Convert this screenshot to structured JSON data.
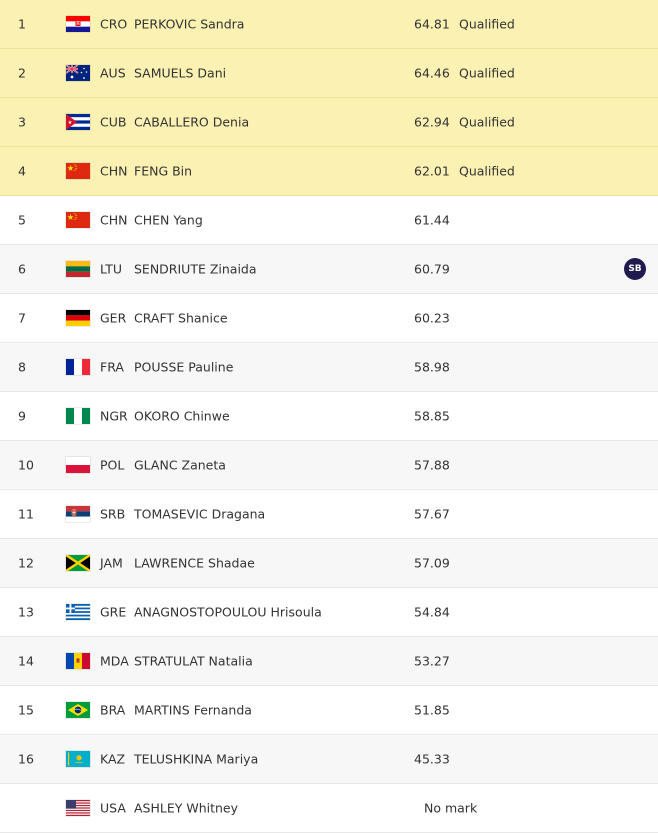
{
  "rows": [
    {
      "rank": "1",
      "code": "CRO",
      "name": "PERKOVIC Sandra",
      "mark": "64.81",
      "status": "Qualified",
      "badge": "",
      "flag": "croatia-flag-icon"
    },
    {
      "rank": "2",
      "code": "AUS",
      "name": "SAMUELS Dani",
      "mark": "64.46",
      "status": "Qualified",
      "badge": "",
      "flag": "australia-flag-icon"
    },
    {
      "rank": "3",
      "code": "CUB",
      "name": "CABALLERO Denia",
      "mark": "62.94",
      "status": "Qualified",
      "badge": "",
      "flag": "cuba-flag-icon"
    },
    {
      "rank": "4",
      "code": "CHN",
      "name": "FENG Bin",
      "mark": "62.01",
      "status": "Qualified",
      "badge": "",
      "flag": "china-flag-icon"
    },
    {
      "rank": "5",
      "code": "CHN",
      "name": "CHEN Yang",
      "mark": "61.44",
      "status": "",
      "badge": "",
      "flag": "china-flag-icon"
    },
    {
      "rank": "6",
      "code": "LTU",
      "name": "SENDRIUTE Zinaida",
      "mark": "60.79",
      "status": "",
      "badge": "SB",
      "flag": "lithuania-flag-icon"
    },
    {
      "rank": "7",
      "code": "GER",
      "name": "CRAFT Shanice",
      "mark": "60.23",
      "status": "",
      "badge": "",
      "flag": "germany-flag-icon"
    },
    {
      "rank": "8",
      "code": "FRA",
      "name": "POUSSE Pauline",
      "mark": "58.98",
      "status": "",
      "badge": "",
      "flag": "france-flag-icon"
    },
    {
      "rank": "9",
      "code": "NGR",
      "name": "OKORO Chinwe",
      "mark": "58.85",
      "status": "",
      "badge": "",
      "flag": "nigeria-flag-icon"
    },
    {
      "rank": "10",
      "code": "POL",
      "name": "GLANC Zaneta",
      "mark": "57.88",
      "status": "",
      "badge": "",
      "flag": "poland-flag-icon"
    },
    {
      "rank": "11",
      "code": "SRB",
      "name": "TOMASEVIC Dragana",
      "mark": "57.67",
      "status": "",
      "badge": "",
      "flag": "serbia-flag-icon"
    },
    {
      "rank": "12",
      "code": "JAM",
      "name": "LAWRENCE Shadae",
      "mark": "57.09",
      "status": "",
      "badge": "",
      "flag": "jamaica-flag-icon"
    },
    {
      "rank": "13",
      "code": "GRE",
      "name": "ANAGNOSTOPOULOU Hrisoula",
      "mark": "54.84",
      "status": "",
      "badge": "",
      "flag": "greece-flag-icon"
    },
    {
      "rank": "14",
      "code": "MDA",
      "name": "STRATULAT Natalia",
      "mark": "53.27",
      "status": "",
      "badge": "",
      "flag": "moldova-flag-icon"
    },
    {
      "rank": "15",
      "code": "BRA",
      "name": "MARTINS Fernanda",
      "mark": "51.85",
      "status": "",
      "badge": "",
      "flag": "brazil-flag-icon"
    },
    {
      "rank": "16",
      "code": "KAZ",
      "name": "TELUSHKINA Mariya",
      "mark": "45.33",
      "status": "",
      "badge": "",
      "flag": "kazakhstan-flag-icon"
    },
    {
      "rank": "",
      "code": "USA",
      "name": "ASHLEY Whitney",
      "mark": "No mark",
      "status": "",
      "badge": "",
      "flag": "usa-flag-icon"
    }
  ]
}
